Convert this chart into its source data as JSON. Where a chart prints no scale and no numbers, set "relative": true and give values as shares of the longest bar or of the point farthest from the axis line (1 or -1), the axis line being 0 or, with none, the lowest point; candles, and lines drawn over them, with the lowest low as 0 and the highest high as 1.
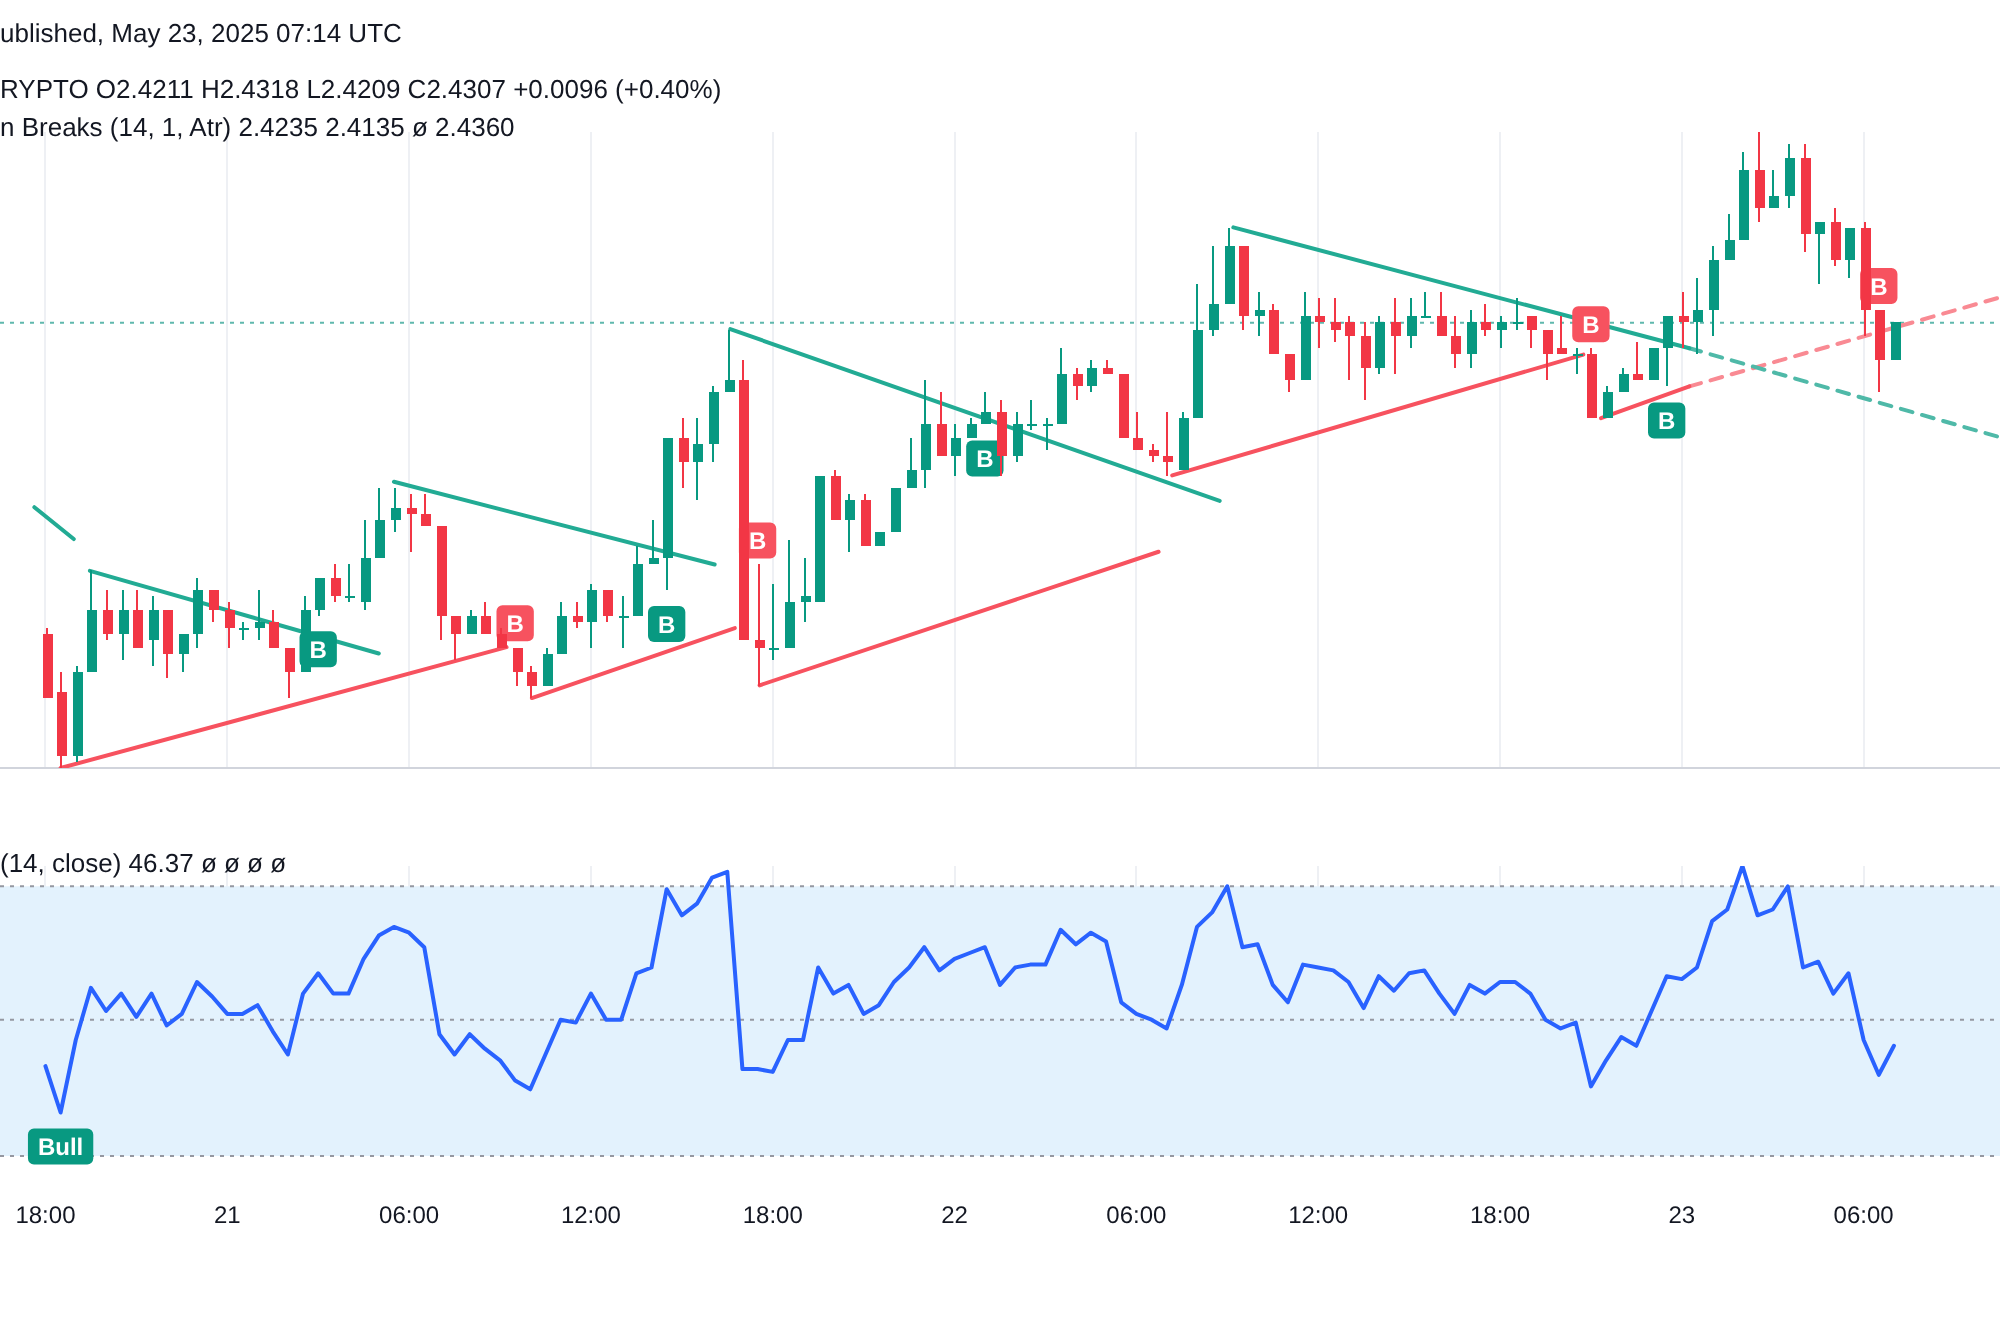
{
  "chart_data": [
    {
      "type": "candlestick",
      "relative": true,
      "x": [
        "2025-05-20T18:00",
        "2025-05-20T18:30",
        "2025-05-20T19:00",
        "2025-05-20T19:30",
        "2025-05-20T20:00",
        "2025-05-20T20:30",
        "2025-05-20T21:00",
        "2025-05-20T21:30",
        "2025-05-20T22:00",
        "2025-05-20T22:30",
        "2025-05-20T23:00",
        "2025-05-20T23:30",
        "2025-05-21T00:00",
        "2025-05-21T00:30",
        "2025-05-21T01:00",
        "2025-05-21T01:30",
        "2025-05-21T02:00",
        "2025-05-21T02:30",
        "2025-05-21T03:00",
        "2025-05-21T03:30",
        "2025-05-21T04:00",
        "2025-05-21T04:30",
        "2025-05-21T05:00",
        "2025-05-21T05:30",
        "2025-05-21T06:00",
        "2025-05-21T06:30",
        "2025-05-21T07:00",
        "2025-05-21T07:30",
        "2025-05-21T08:00",
        "2025-05-21T08:30",
        "2025-05-21T09:00",
        "2025-05-21T09:30",
        "2025-05-21T10:00",
        "2025-05-21T10:30",
        "2025-05-21T11:00",
        "2025-05-21T11:30",
        "2025-05-21T12:00",
        "2025-05-21T12:30",
        "2025-05-21T13:00",
        "2025-05-21T13:30",
        "2025-05-21T14:00",
        "2025-05-21T14:30",
        "2025-05-21T15:00",
        "2025-05-21T15:30",
        "2025-05-21T16:00",
        "2025-05-21T16:30",
        "2025-05-21T17:00",
        "2025-05-21T17:30",
        "2025-05-21T18:00",
        "2025-05-21T18:30",
        "2025-05-21T19:00",
        "2025-05-21T19:30",
        "2025-05-21T20:00",
        "2025-05-21T20:30",
        "2025-05-21T21:00",
        "2025-05-21T21:30",
        "2025-05-21T22:00",
        "2025-05-21T22:30",
        "2025-05-21T23:00",
        "2025-05-21T23:30",
        "2025-05-22T00:00",
        "2025-05-22T00:30",
        "2025-05-22T01:00",
        "2025-05-22T01:30",
        "2025-05-22T02:00",
        "2025-05-22T02:30",
        "2025-05-22T03:00",
        "2025-05-22T03:30",
        "2025-05-22T04:00",
        "2025-05-22T04:30",
        "2025-05-22T05:00",
        "2025-05-22T05:30",
        "2025-05-22T06:00",
        "2025-05-22T06:30",
        "2025-05-22T07:00",
        "2025-05-22T07:30",
        "2025-05-22T08:00",
        "2025-05-22T08:30",
        "2025-05-22T09:00",
        "2025-05-22T09:30",
        "2025-05-22T10:00",
        "2025-05-22T10:30",
        "2025-05-22T11:00",
        "2025-05-22T11:30",
        "2025-05-22T12:00",
        "2025-05-22T12:30",
        "2025-05-22T13:00",
        "2025-05-22T13:30",
        "2025-05-22T14:00",
        "2025-05-22T14:30",
        "2025-05-22T15:00",
        "2025-05-22T15:30",
        "2025-05-22T16:00",
        "2025-05-22T16:30",
        "2025-05-22T17:00",
        "2025-05-22T17:30",
        "2025-05-22T18:00",
        "2025-05-22T18:30",
        "2025-05-22T19:00",
        "2025-05-22T19:30",
        "2025-05-22T20:00",
        "2025-05-22T20:30",
        "2025-05-22T21:00",
        "2025-05-22T21:30",
        "2025-05-22T22:00",
        "2025-05-22T22:30",
        "2025-05-22T23:00",
        "2025-05-22T23:30",
        "2025-05-23T00:00",
        "2025-05-23T00:30",
        "2025-05-23T01:00",
        "2025-05-23T01:30",
        "2025-05-23T02:00",
        "2025-05-23T02:30",
        "2025-05-23T03:00",
        "2025-05-23T03:30",
        "2025-05-23T04:00",
        "2025-05-23T04:30",
        "2025-05-23T05:00",
        "2025-05-23T05:30",
        "2025-05-23T06:00",
        "2025-05-23T06:30",
        "2025-05-23T07:00"
      ],
      "ohlc": [
        [
          0.21,
          0.22,
          0.11,
          0.11
        ],
        [
          0.12,
          0.15,
          0,
          0.02
        ],
        [
          0.02,
          0.16,
          0.01,
          0.15
        ],
        [
          0.15,
          0.31,
          0.15,
          0.25
        ],
        [
          0.25,
          0.28,
          0.2,
          0.21
        ],
        [
          0.21,
          0.28,
          0.17,
          0.25
        ],
        [
          0.25,
          0.28,
          0.19,
          0.19
        ],
        [
          0.2,
          0.27,
          0.16,
          0.25
        ],
        [
          0.25,
          0.25,
          0.14,
          0.18
        ],
        [
          0.18,
          0.21,
          0.15,
          0.21
        ],
        [
          0.21,
          0.3,
          0.19,
          0.28
        ],
        [
          0.28,
          0.28,
          0.23,
          0.25
        ],
        [
          0.25,
          0.26,
          0.19,
          0.22
        ],
        [
          0.22,
          0.23,
          0.2,
          0.22
        ],
        [
          0.22,
          0.28,
          0.2,
          0.23
        ],
        [
          0.23,
          0.25,
          0.19,
          0.19
        ],
        [
          0.19,
          0.19,
          0.11,
          0.15
        ],
        [
          0.15,
          0.27,
          0.15,
          0.25
        ],
        [
          0.25,
          0.3,
          0.24,
          0.3
        ],
        [
          0.3,
          0.32,
          0.26,
          0.27
        ],
        [
          0.27,
          0.32,
          0.26,
          0.27
        ],
        [
          0.26,
          0.39,
          0.25,
          0.33
        ],
        [
          0.33,
          0.44,
          0.33,
          0.39
        ],
        [
          0.39,
          0.44,
          0.37,
          0.41
        ],
        [
          0.41,
          0.43,
          0.34,
          0.4
        ],
        [
          0.4,
          0.43,
          0.38,
          0.38
        ],
        [
          0.38,
          0.38,
          0.2,
          0.24
        ],
        [
          0.24,
          0.24,
          0.17,
          0.21
        ],
        [
          0.21,
          0.25,
          0.21,
          0.24
        ],
        [
          0.24,
          0.26,
          0.21,
          0.21
        ],
        [
          0.21,
          0.22,
          0.19,
          0.19
        ],
        [
          0.19,
          0.19,
          0.13,
          0.15
        ],
        [
          0.15,
          0.16,
          0.11,
          0.13
        ],
        [
          0.13,
          0.19,
          0.13,
          0.18
        ],
        [
          0.18,
          0.26,
          0.18,
          0.24
        ],
        [
          0.24,
          0.26,
          0.22,
          0.23
        ],
        [
          0.23,
          0.29,
          0.19,
          0.28
        ],
        [
          0.28,
          0.28,
          0.23,
          0.24
        ],
        [
          0.24,
          0.27,
          0.19,
          0.24
        ],
        [
          0.24,
          0.35,
          0.24,
          0.32
        ],
        [
          0.32,
          0.39,
          0.32,
          0.33
        ],
        [
          0.33,
          0.52,
          0.28,
          0.52
        ],
        [
          0.52,
          0.55,
          0.44,
          0.48
        ],
        [
          0.48,
          0.55,
          0.42,
          0.51
        ],
        [
          0.51,
          0.6,
          0.48,
          0.59
        ],
        [
          0.59,
          0.69,
          0.59,
          0.61
        ],
        [
          0.61,
          0.64,
          0.2,
          0.2
        ],
        [
          0.2,
          0.32,
          0.13,
          0.19
        ],
        [
          0.19,
          0.29,
          0.17,
          0.19
        ],
        [
          0.19,
          0.36,
          0.19,
          0.26
        ],
        [
          0.26,
          0.33,
          0.23,
          0.27
        ],
        [
          0.26,
          0.46,
          0.26,
          0.46
        ],
        [
          0.46,
          0.47,
          0.39,
          0.39
        ],
        [
          0.39,
          0.43,
          0.34,
          0.42
        ],
        [
          0.42,
          0.43,
          0.35,
          0.35
        ],
        [
          0.35,
          0.37,
          0.35,
          0.37
        ],
        [
          0.37,
          0.44,
          0.37,
          0.44
        ],
        [
          0.44,
          0.52,
          0.44,
          0.47
        ],
        [
          0.47,
          0.61,
          0.44,
          0.54
        ],
        [
          0.54,
          0.59,
          0.49,
          0.49
        ],
        [
          0.49,
          0.54,
          0.46,
          0.52
        ],
        [
          0.52,
          0.55,
          0.52,
          0.54
        ],
        [
          0.54,
          0.59,
          0.54,
          0.56
        ],
        [
          0.56,
          0.58,
          0.46,
          0.49
        ],
        [
          0.49,
          0.56,
          0.48,
          0.54
        ],
        [
          0.54,
          0.58,
          0.53,
          0.54
        ],
        [
          0.54,
          0.55,
          0.5,
          0.54
        ],
        [
          0.54,
          0.66,
          0.54,
          0.62
        ],
        [
          0.62,
          0.63,
          0.58,
          0.6
        ],
        [
          0.6,
          0.64,
          0.59,
          0.63
        ],
        [
          0.63,
          0.64,
          0.62,
          0.62
        ],
        [
          0.62,
          0.62,
          0.52,
          0.52
        ],
        [
          0.52,
          0.56,
          0.5,
          0.5
        ],
        [
          0.5,
          0.51,
          0.48,
          0.49
        ],
        [
          0.49,
          0.56,
          0.46,
          0.48
        ],
        [
          0.47,
          0.56,
          0.47,
          0.55
        ],
        [
          0.55,
          0.76,
          0.55,
          0.69
        ],
        [
          0.69,
          0.82,
          0.68,
          0.73
        ],
        [
          0.73,
          0.85,
          0.73,
          0.82
        ],
        [
          0.82,
          0.82,
          0.69,
          0.71
        ],
        [
          0.71,
          0.75,
          0.68,
          0.72
        ],
        [
          0.72,
          0.73,
          0.65,
          0.65
        ],
        [
          0.65,
          0.65,
          0.59,
          0.61
        ],
        [
          0.61,
          0.75,
          0.61,
          0.71
        ],
        [
          0.71,
          0.74,
          0.66,
          0.7
        ],
        [
          0.7,
          0.74,
          0.67,
          0.69
        ],
        [
          0.7,
          0.71,
          0.61,
          0.68
        ],
        [
          0.68,
          0.7,
          0.58,
          0.63
        ],
        [
          0.63,
          0.71,
          0.62,
          0.7
        ],
        [
          0.7,
          0.74,
          0.62,
          0.68
        ],
        [
          0.68,
          0.74,
          0.66,
          0.71
        ],
        [
          0.71,
          0.75,
          0.71,
          0.71
        ],
        [
          0.71,
          0.75,
          0.68,
          0.68
        ],
        [
          0.68,
          0.71,
          0.63,
          0.65
        ],
        [
          0.65,
          0.72,
          0.63,
          0.7
        ],
        [
          0.7,
          0.73,
          0.68,
          0.69
        ],
        [
          0.69,
          0.71,
          0.66,
          0.7
        ],
        [
          0.7,
          0.74,
          0.69,
          0.7
        ],
        [
          0.71,
          0.71,
          0.66,
          0.69
        ],
        [
          0.69,
          0.69,
          0.61,
          0.65
        ],
        [
          0.66,
          0.71,
          0.65,
          0.65
        ],
        [
          0.65,
          0.66,
          0.62,
          0.65
        ],
        [
          0.65,
          0.66,
          0.55,
          0.55
        ],
        [
          0.55,
          0.6,
          0.55,
          0.59
        ],
        [
          0.59,
          0.63,
          0.59,
          0.62
        ],
        [
          0.62,
          0.67,
          0.61,
          0.61
        ],
        [
          0.61,
          0.66,
          0.61,
          0.66
        ],
        [
          0.66,
          0.71,
          0.6,
          0.71
        ],
        [
          0.71,
          0.75,
          0.66,
          0.7
        ],
        [
          0.7,
          0.77,
          0.65,
          0.72
        ],
        [
          0.72,
          0.82,
          0.68,
          0.8
        ],
        [
          0.8,
          0.87,
          0.8,
          0.83
        ],
        [
          0.83,
          0.97,
          0.83,
          0.94
        ],
        [
          0.94,
          1.0,
          0.86,
          0.88
        ],
        [
          0.88,
          0.94,
          0.88,
          0.9
        ],
        [
          0.9,
          0.98,
          0.88,
          0.96
        ],
        [
          0.96,
          0.98,
          0.81,
          0.84
        ],
        [
          0.84,
          0.86,
          0.76,
          0.86
        ],
        [
          0.86,
          0.88,
          0.79,
          0.8
        ],
        [
          0.8,
          0.85,
          0.77,
          0.85
        ],
        [
          0.85,
          0.86,
          0.68,
          0.72
        ],
        [
          0.72,
          0.72,
          0.59,
          0.64
        ],
        [
          0.64,
          0.7,
          0.64,
          0.7
        ]
      ],
      "series": [
        {
          "type": "line",
          "color": "#22ab94",
          "line_style": "solid",
          "x": [
            "2025-05-20T17:38",
            "2025-05-20T18:56"
          ],
          "values": [
            0.41,
            0.36
          ]
        },
        {
          "type": "line",
          "color": "#22ab94",
          "line_style": "solid",
          "x": [
            "2025-05-20T19:28",
            "2025-05-21T05:00"
          ],
          "values": [
            0.31,
            0.18
          ]
        },
        {
          "type": "line",
          "color": "#22ab94",
          "line_style": "solid",
          "x": [
            "2025-05-21T05:30",
            "2025-05-21T16:05"
          ],
          "values": [
            0.45,
            0.32
          ]
        },
        {
          "type": "line",
          "color": "#22ab94",
          "line_style": "solid",
          "x": [
            "2025-05-21T16:36",
            "2025-05-22T08:45"
          ],
          "values": [
            0.69,
            0.42
          ]
        },
        {
          "type": "line",
          "color": "#22ab94",
          "line_style": "solid",
          "x": [
            "2025-05-22T09:12",
            "2025-05-23T00:15"
          ],
          "values": [
            0.85,
            0.66
          ]
        },
        {
          "type": "line",
          "color": "#4fb9a8",
          "line_style": "dashed",
          "x": [
            "2025-05-23T00:15",
            "2025-05-23T10:30"
          ],
          "values": [
            0.66,
            0.52
          ]
        },
        {
          "type": "line",
          "color": "#f7525f",
          "line_style": "solid",
          "x": [
            "2025-05-20T18:30",
            "2025-05-21T09:13"
          ],
          "values": [
            0,
            0.19
          ]
        },
        {
          "type": "line",
          "color": "#f7525f",
          "line_style": "solid",
          "x": [
            "2025-05-21T10:03",
            "2025-05-21T16:45"
          ],
          "values": [
            0.11,
            0.22
          ]
        },
        {
          "type": "line",
          "color": "#f7525f",
          "line_style": "solid",
          "x": [
            "2025-05-21T17:34",
            "2025-05-22T06:44"
          ],
          "values": [
            0.13,
            0.34
          ]
        },
        {
          "type": "line",
          "color": "#f7525f",
          "line_style": "solid",
          "x": [
            "2025-05-22T07:11",
            "2025-05-22T20:45"
          ],
          "values": [
            0.46,
            0.65
          ]
        },
        {
          "type": "line",
          "color": "#f7525f",
          "line_style": "solid",
          "x": [
            "2025-05-22T21:20",
            "2025-05-23T00:15"
          ],
          "values": [
            0.55,
            0.6
          ]
        },
        {
          "type": "line",
          "color": "#f98a93",
          "line_style": "dashed",
          "x": [
            "2025-05-23T00:15",
            "2025-05-23T10:30"
          ],
          "values": [
            0.6,
            0.74
          ]
        }
      ],
      "xlim": [
        "2025-05-20T16:30",
        "2025-05-23T10:30"
      ],
      "xticks": [
        {
          "value": "2025-05-20T18:00",
          "label": null
        },
        {
          "value": "2025-05-21T00:00",
          "label": null
        },
        {
          "value": "2025-05-21T06:00",
          "label": null
        },
        {
          "value": "2025-05-21T12:00",
          "label": null
        },
        {
          "value": "2025-05-21T18:00",
          "label": null
        },
        {
          "value": "2025-05-22T00:00",
          "label": null
        },
        {
          "value": "2025-05-22T06:00",
          "label": null
        },
        {
          "value": "2025-05-22T12:00",
          "label": null
        },
        {
          "value": "2025-05-22T18:00",
          "label": null
        },
        {
          "value": "2025-05-23T00:00",
          "label": null
        },
        {
          "value": "2025-05-23T06:00",
          "label": null
        }
      ],
      "tick_labels": false,
      "grid": "x",
      "legend": false,
      "ref_lines": [
        {
          "axis": "y",
          "value": 0.7,
          "color": "#5fb8ad",
          "line_style": "dotted"
        }
      ],
      "annotations": [
        "ublished, May 23, 2025 07:14 UTC",
        "RYPTO O2.4211 H2.4318 L2.4209 C2.4307 +0.0096 (+0.40%)",
        "n Breaks (14, 1, Atr) 2.4235 2.4135 ø 2.4360",
        {
          "text": "B",
          "x": "2025-05-21T03:00",
          "y": 0.24
        },
        {
          "text": "B",
          "x": "2025-05-21T09:30",
          "y": 0.19
        },
        {
          "text": "B",
          "x": "2025-05-21T14:30",
          "y": 0.28
        },
        {
          "text": "B",
          "x": "2025-05-21T17:30",
          "y": 0.32
        },
        {
          "text": "B",
          "x": "2025-05-22T01:00",
          "y": 0.54
        },
        {
          "text": "B",
          "x": "2025-05-22T21:00",
          "y": 0.66
        },
        {
          "text": "B",
          "x": "2025-05-22T23:30",
          "y": 0.6
        },
        {
          "text": "B",
          "x": "2025-05-23T06:30",
          "y": 0.72
        }
      ]
    },
    {
      "type": "line",
      "relative": true,
      "x": [
        "2025-05-20T18:00",
        "2025-05-20T18:30",
        "2025-05-20T19:00",
        "2025-05-20T19:30",
        "2025-05-20T20:00",
        "2025-05-20T20:30",
        "2025-05-20T21:00",
        "2025-05-20T21:30",
        "2025-05-20T22:00",
        "2025-05-20T22:30",
        "2025-05-20T23:00",
        "2025-05-20T23:30",
        "2025-05-21T00:00",
        "2025-05-21T00:30",
        "2025-05-21T01:00",
        "2025-05-21T01:30",
        "2025-05-21T02:00",
        "2025-05-21T02:30",
        "2025-05-21T03:00",
        "2025-05-21T03:30",
        "2025-05-21T04:00",
        "2025-05-21T04:30",
        "2025-05-21T05:00",
        "2025-05-21T05:30",
        "2025-05-21T06:00",
        "2025-05-21T06:30",
        "2025-05-21T07:00",
        "2025-05-21T07:30",
        "2025-05-21T08:00",
        "2025-05-21T08:30",
        "2025-05-21T09:00",
        "2025-05-21T09:30",
        "2025-05-21T10:00",
        "2025-05-21T10:30",
        "2025-05-21T11:00",
        "2025-05-21T11:30",
        "2025-05-21T12:00",
        "2025-05-21T12:30",
        "2025-05-21T13:00",
        "2025-05-21T13:30",
        "2025-05-21T14:00",
        "2025-05-21T14:30",
        "2025-05-21T15:00",
        "2025-05-21T15:30",
        "2025-05-21T16:00",
        "2025-05-21T16:30",
        "2025-05-21T17:00",
        "2025-05-21T17:30",
        "2025-05-21T18:00",
        "2025-05-21T18:30",
        "2025-05-21T19:00",
        "2025-05-21T19:30",
        "2025-05-21T20:00",
        "2025-05-21T20:30",
        "2025-05-21T21:00",
        "2025-05-21T21:30",
        "2025-05-21T22:00",
        "2025-05-21T22:30",
        "2025-05-21T23:00",
        "2025-05-21T23:30",
        "2025-05-22T00:00",
        "2025-05-22T00:30",
        "2025-05-22T01:00",
        "2025-05-22T01:30",
        "2025-05-22T02:00",
        "2025-05-22T02:30",
        "2025-05-22T03:00",
        "2025-05-22T03:30",
        "2025-05-22T04:00",
        "2025-05-22T04:30",
        "2025-05-22T05:00",
        "2025-05-22T05:30",
        "2025-05-22T06:00",
        "2025-05-22T06:30",
        "2025-05-22T07:00",
        "2025-05-22T07:30",
        "2025-05-22T08:00",
        "2025-05-22T08:30",
        "2025-05-22T09:00",
        "2025-05-22T09:30",
        "2025-05-22T10:00",
        "2025-05-22T10:30",
        "2025-05-22T11:00",
        "2025-05-22T11:30",
        "2025-05-22T12:00",
        "2025-05-22T12:30",
        "2025-05-22T13:00",
        "2025-05-22T13:30",
        "2025-05-22T14:00",
        "2025-05-22T14:30",
        "2025-05-22T15:00",
        "2025-05-22T15:30",
        "2025-05-22T16:00",
        "2025-05-22T16:30",
        "2025-05-22T17:00",
        "2025-05-22T17:30",
        "2025-05-22T18:00",
        "2025-05-22T18:30",
        "2025-05-22T19:00",
        "2025-05-22T19:30",
        "2025-05-22T20:00",
        "2025-05-22T20:30",
        "2025-05-22T21:00",
        "2025-05-22T21:30",
        "2025-05-22T22:00",
        "2025-05-22T22:30",
        "2025-05-22T23:00",
        "2025-05-22T23:30",
        "2025-05-23T00:00",
        "2025-05-23T00:30",
        "2025-05-23T01:00",
        "2025-05-23T01:30",
        "2025-05-23T02:00",
        "2025-05-23T02:30",
        "2025-05-23T03:00",
        "2025-05-23T03:30",
        "2025-05-23T04:00",
        "2025-05-23T04:30",
        "2025-05-23T05:00",
        "2025-05-23T05:30",
        "2025-05-23T06:00",
        "2025-05-23T06:30",
        "2025-05-23T07:00"
      ],
      "series": [
        {
          "color": "#2962ff",
          "values": [
            0.31,
            0.15,
            0.4,
            0.58,
            0.5,
            0.56,
            0.48,
            0.56,
            0.45,
            0.49,
            0.6,
            0.55,
            0.49,
            0.49,
            0.52,
            0.43,
            0.35,
            0.56,
            0.63,
            0.56,
            0.56,
            0.68,
            0.76,
            0.79,
            0.77,
            0.72,
            0.42,
            0.35,
            0.42,
            0.37,
            0.33,
            0.26,
            0.23,
            0.35,
            0.47,
            0.46,
            0.56,
            0.47,
            0.47,
            0.63,
            0.65,
            0.92,
            0.83,
            0.87,
            0.96,
            0.98,
            0.3,
            0.3,
            0.29,
            0.4,
            0.4,
            0.65,
            0.56,
            0.59,
            0.49,
            0.52,
            0.6,
            0.65,
            0.72,
            0.64,
            0.68,
            0.7,
            0.72,
            0.59,
            0.65,
            0.66,
            0.66,
            0.78,
            0.73,
            0.77,
            0.74,
            0.53,
            0.49,
            0.47,
            0.44,
            0.59,
            0.79,
            0.84,
            0.93,
            0.72,
            0.73,
            0.59,
            0.53,
            0.66,
            0.65,
            0.64,
            0.6,
            0.51,
            0.62,
            0.57,
            0.63,
            0.64,
            0.56,
            0.49,
            0.59,
            0.56,
            0.6,
            0.6,
            0.56,
            0.47,
            0.44,
            0.46,
            0.24,
            0.33,
            0.41,
            0.38,
            0.5,
            0.62,
            0.61,
            0.65,
            0.81,
            0.85,
            1,
            0.83,
            0.85,
            0.93,
            0.65,
            0.67,
            0.56,
            0.63,
            0.4,
            0.28,
            0.38
          ]
        }
      ],
      "marker": "none",
      "xlim": [
        "2025-05-20T16:30",
        "2025-05-23T10:30"
      ],
      "xticks": [
        {
          "value": "2025-05-20T18:00",
          "label": "18:00"
        },
        {
          "value": "2025-05-21T00:00",
          "label": "21"
        },
        {
          "value": "2025-05-21T06:00",
          "label": "06:00"
        },
        {
          "value": "2025-05-21T12:00",
          "label": "12:00"
        },
        {
          "value": "2025-05-21T18:00",
          "label": "18:00"
        },
        {
          "value": "2025-05-22T00:00",
          "label": "22"
        },
        {
          "value": "2025-05-22T06:00",
          "label": "06:00"
        },
        {
          "value": "2025-05-22T12:00",
          "label": "12:00"
        },
        {
          "value": "2025-05-22T18:00",
          "label": "18:00"
        },
        {
          "value": "2025-05-23T00:00",
          "label": "23"
        },
        {
          "value": "2025-05-23T06:00",
          "label": "06:00"
        }
      ],
      "tick_labels": "x",
      "grid": "x",
      "legend": false,
      "bands": [
        {
          "axis": "y",
          "from": 0,
          "to": 0.93,
          "color": "#e3f2fd"
        }
      ],
      "ref_lines": [
        {
          "axis": "y",
          "value": 0.93,
          "color": "#9598a1",
          "line_style": "dotted"
        },
        {
          "axis": "y",
          "value": 0.47,
          "color": "#9598a1",
          "line_style": "dotted"
        },
        {
          "axis": "y",
          "value": 0,
          "color": "#9598a1",
          "line_style": "dotted"
        }
      ],
      "annotations": [
        "(14, close) 46.37 ø ø ø ø",
        {
          "text": "Bull",
          "x": "2025-05-20T18:30",
          "y": 0.15
        }
      ]
    }
  ]
}
